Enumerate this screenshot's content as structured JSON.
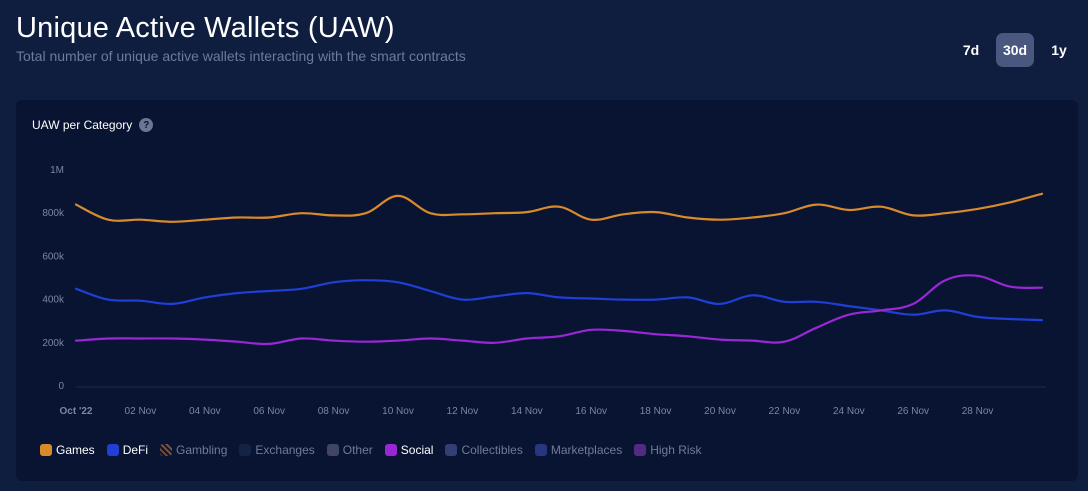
{
  "header": {
    "title": "Unique Active Wallets (UAW)",
    "subtitle": "Total number of unique active wallets interacting with the smart contracts"
  },
  "range_buttons": [
    {
      "label": "7d",
      "active": false
    },
    {
      "label": "30d",
      "active": true
    },
    {
      "label": "1y",
      "active": false
    }
  ],
  "card": {
    "title": "UAW per Category",
    "help_icon": "question-circle-icon"
  },
  "chart_data": {
    "type": "line",
    "x_labels": [
      "Oct '22",
      "02 Nov",
      "04 Nov",
      "06 Nov",
      "08 Nov",
      "10 Nov",
      "12 Nov",
      "14 Nov",
      "16 Nov",
      "18 Nov",
      "20 Nov",
      "22 Nov",
      "24 Nov",
      "26 Nov",
      "28 Nov"
    ],
    "y_ticks": [
      {
        "value": 0,
        "label": "0"
      },
      {
        "value": 200000,
        "label": "200k"
      },
      {
        "value": 400000,
        "label": "400k"
      },
      {
        "value": 600000,
        "label": "600k"
      },
      {
        "value": 800000,
        "label": "800k"
      },
      {
        "value": 1000000,
        "label": "1M"
      }
    ],
    "ylim": [
      0,
      1000000
    ],
    "x": [
      "Oct '22",
      "31 Oct",
      "01 Nov",
      "02 Nov",
      "03 Nov",
      "04 Nov",
      "05 Nov",
      "06 Nov",
      "07 Nov",
      "08 Nov",
      "09 Nov",
      "10 Nov",
      "11 Nov",
      "12 Nov",
      "13 Nov",
      "14 Nov",
      "15 Nov",
      "16 Nov",
      "17 Nov",
      "18 Nov",
      "19 Nov",
      "20 Nov",
      "21 Nov",
      "22 Nov",
      "23 Nov",
      "24 Nov",
      "25 Nov",
      "26 Nov",
      "27 Nov",
      "28 Nov",
      "29 Nov"
    ],
    "series": [
      {
        "name": "Games",
        "color": "#d98a2b",
        "values": [
          840000,
          770000,
          770000,
          760000,
          770000,
          780000,
          780000,
          800000,
          790000,
          800000,
          880000,
          800000,
          795000,
          800000,
          805000,
          830000,
          770000,
          795000,
          805000,
          780000,
          770000,
          780000,
          800000,
          840000,
          815000,
          830000,
          790000,
          800000,
          820000,
          850000,
          890000
        ]
      },
      {
        "name": "DeFi",
        "color": "#1f3fd6",
        "values": [
          450000,
          400000,
          395000,
          380000,
          410000,
          430000,
          440000,
          450000,
          480000,
          490000,
          480000,
          440000,
          400000,
          415000,
          430000,
          410000,
          405000,
          400000,
          400000,
          410000,
          380000,
          420000,
          390000,
          390000,
          370000,
          350000,
          330000,
          350000,
          320000,
          310000,
          305000
        ]
      },
      {
        "name": "Social",
        "color": "#9a27d6",
        "values": [
          210000,
          220000,
          220000,
          220000,
          215000,
          205000,
          195000,
          220000,
          210000,
          205000,
          210000,
          220000,
          210000,
          200000,
          220000,
          230000,
          260000,
          255000,
          240000,
          230000,
          215000,
          210000,
          205000,
          270000,
          330000,
          350000,
          380000,
          490000,
          510000,
          460000,
          455000
        ]
      }
    ],
    "legend": [
      {
        "name": "Games",
        "color": "#d98a2b",
        "visible": true,
        "style": "solid"
      },
      {
        "name": "DeFi",
        "color": "#1f3fd6",
        "visible": true,
        "style": "solid"
      },
      {
        "name": "Gambling",
        "color": "#8a5a3a",
        "visible": false,
        "style": "hatched"
      },
      {
        "name": "Exchanges",
        "color": "#162447",
        "visible": false,
        "style": "solid"
      },
      {
        "name": "Other",
        "color": "#4a4f6a",
        "visible": false,
        "style": "solid"
      },
      {
        "name": "Social",
        "color": "#9a27d6",
        "visible": true,
        "style": "solid"
      },
      {
        "name": "Collectibles",
        "color": "#3a4580",
        "visible": false,
        "style": "solid"
      },
      {
        "name": "Marketplaces",
        "color": "#2e3b8f",
        "visible": false,
        "style": "solid"
      },
      {
        "name": "High Risk",
        "color": "#5e2f8f",
        "visible": false,
        "style": "solid"
      }
    ],
    "grid": false,
    "legend_position": "bottom-left"
  }
}
